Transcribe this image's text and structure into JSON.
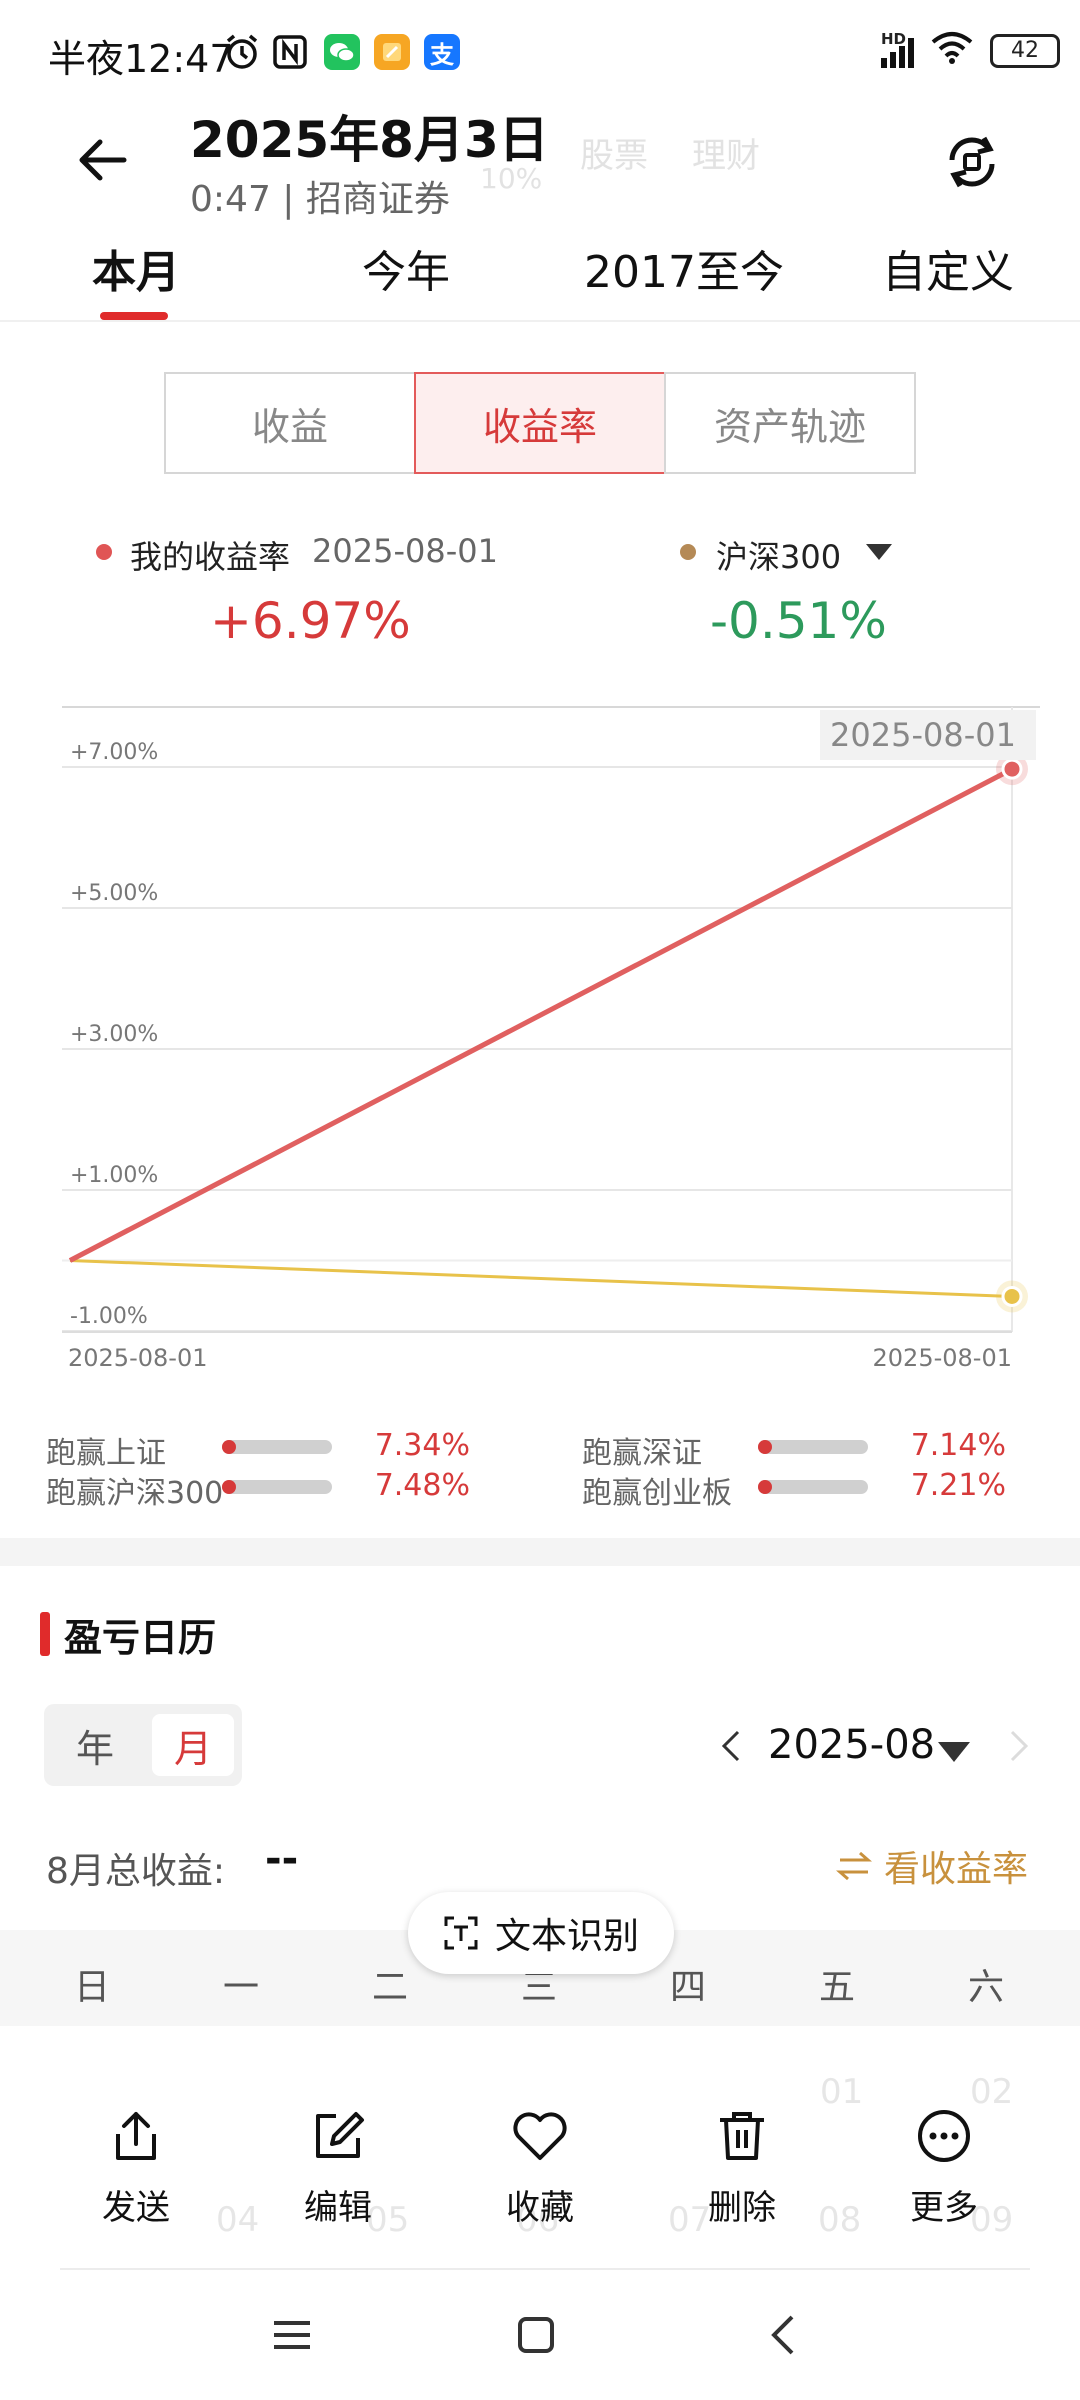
{
  "status_bar": {
    "time": "半夜12:47",
    "battery": "42",
    "network": "HD"
  },
  "header": {
    "title": "2025年8月3日",
    "subtitle": "0:47 | 招商证券",
    "ghost_tabs": [
      "股票",
      "理财"
    ],
    "ghost_text": "10%"
  },
  "period_tabs": [
    {
      "label": "本月",
      "active": true
    },
    {
      "label": "今年",
      "active": false
    },
    {
      "label": "2017至今",
      "active": false
    },
    {
      "label": "自定义",
      "active": false
    }
  ],
  "segments": [
    {
      "label": "收益",
      "active": false
    },
    {
      "label": "收益率",
      "active": true
    },
    {
      "label": "资产轨迹",
      "active": false
    }
  ],
  "legend": {
    "mine_label": "我的收益率",
    "mine_date": "2025-08-01",
    "mine_value": "+6.97%",
    "mine_color": "#e05555",
    "bench_label": "沪深300",
    "bench_value": "-0.51%",
    "bench_color": "#b58a56"
  },
  "chart_data": {
    "type": "line",
    "x": [
      "2025-08-01",
      "2025-08-01"
    ],
    "series": [
      {
        "name": "我的收益率",
        "values": [
          0,
          6.97
        ],
        "color": "#e06060"
      },
      {
        "name": "沪深300",
        "values": [
          0,
          -0.51
        ],
        "color": "#e8c24a"
      }
    ],
    "yticks": [
      7,
      5,
      3,
      1,
      -1
    ],
    "ytick_labels": [
      "+7.00%",
      "+5.00%",
      "+3.00%",
      "+1.00%",
      "-1.00%"
    ],
    "ylim": [
      -1.0,
      7.0
    ],
    "xtick_labels": [
      "2025-08-01",
      "2025-08-01"
    ],
    "tooltip": "2025-08-01",
    "grid": true
  },
  "comparisons": [
    {
      "label": "跑赢上证",
      "value": "7.34%"
    },
    {
      "label": "跑赢深证",
      "value": "7.14%"
    },
    {
      "label": "跑赢沪深300",
      "value": "7.48%"
    },
    {
      "label": "跑赢创业板",
      "value": "7.21%"
    }
  ],
  "calendar": {
    "title": "盈亏日历",
    "toggle": [
      "年",
      "月"
    ],
    "month": "2025-08",
    "total_label": "8月总收益:",
    "total_value": "--",
    "switch_label": "看收益率",
    "weekdays": [
      "日",
      "一",
      "二",
      "三",
      "四",
      "五",
      "六"
    ],
    "faint_dates": [
      "01",
      "02",
      "04",
      "05",
      "06",
      "07",
      "08",
      "09"
    ]
  },
  "ocr_pill": "文本识别",
  "actions": [
    {
      "label": "发送",
      "icon": "share-icon"
    },
    {
      "label": "编辑",
      "icon": "edit-icon"
    },
    {
      "label": "收藏",
      "icon": "heart-icon"
    },
    {
      "label": "删除",
      "icon": "trash-icon"
    },
    {
      "label": "更多",
      "icon": "more-icon"
    }
  ]
}
